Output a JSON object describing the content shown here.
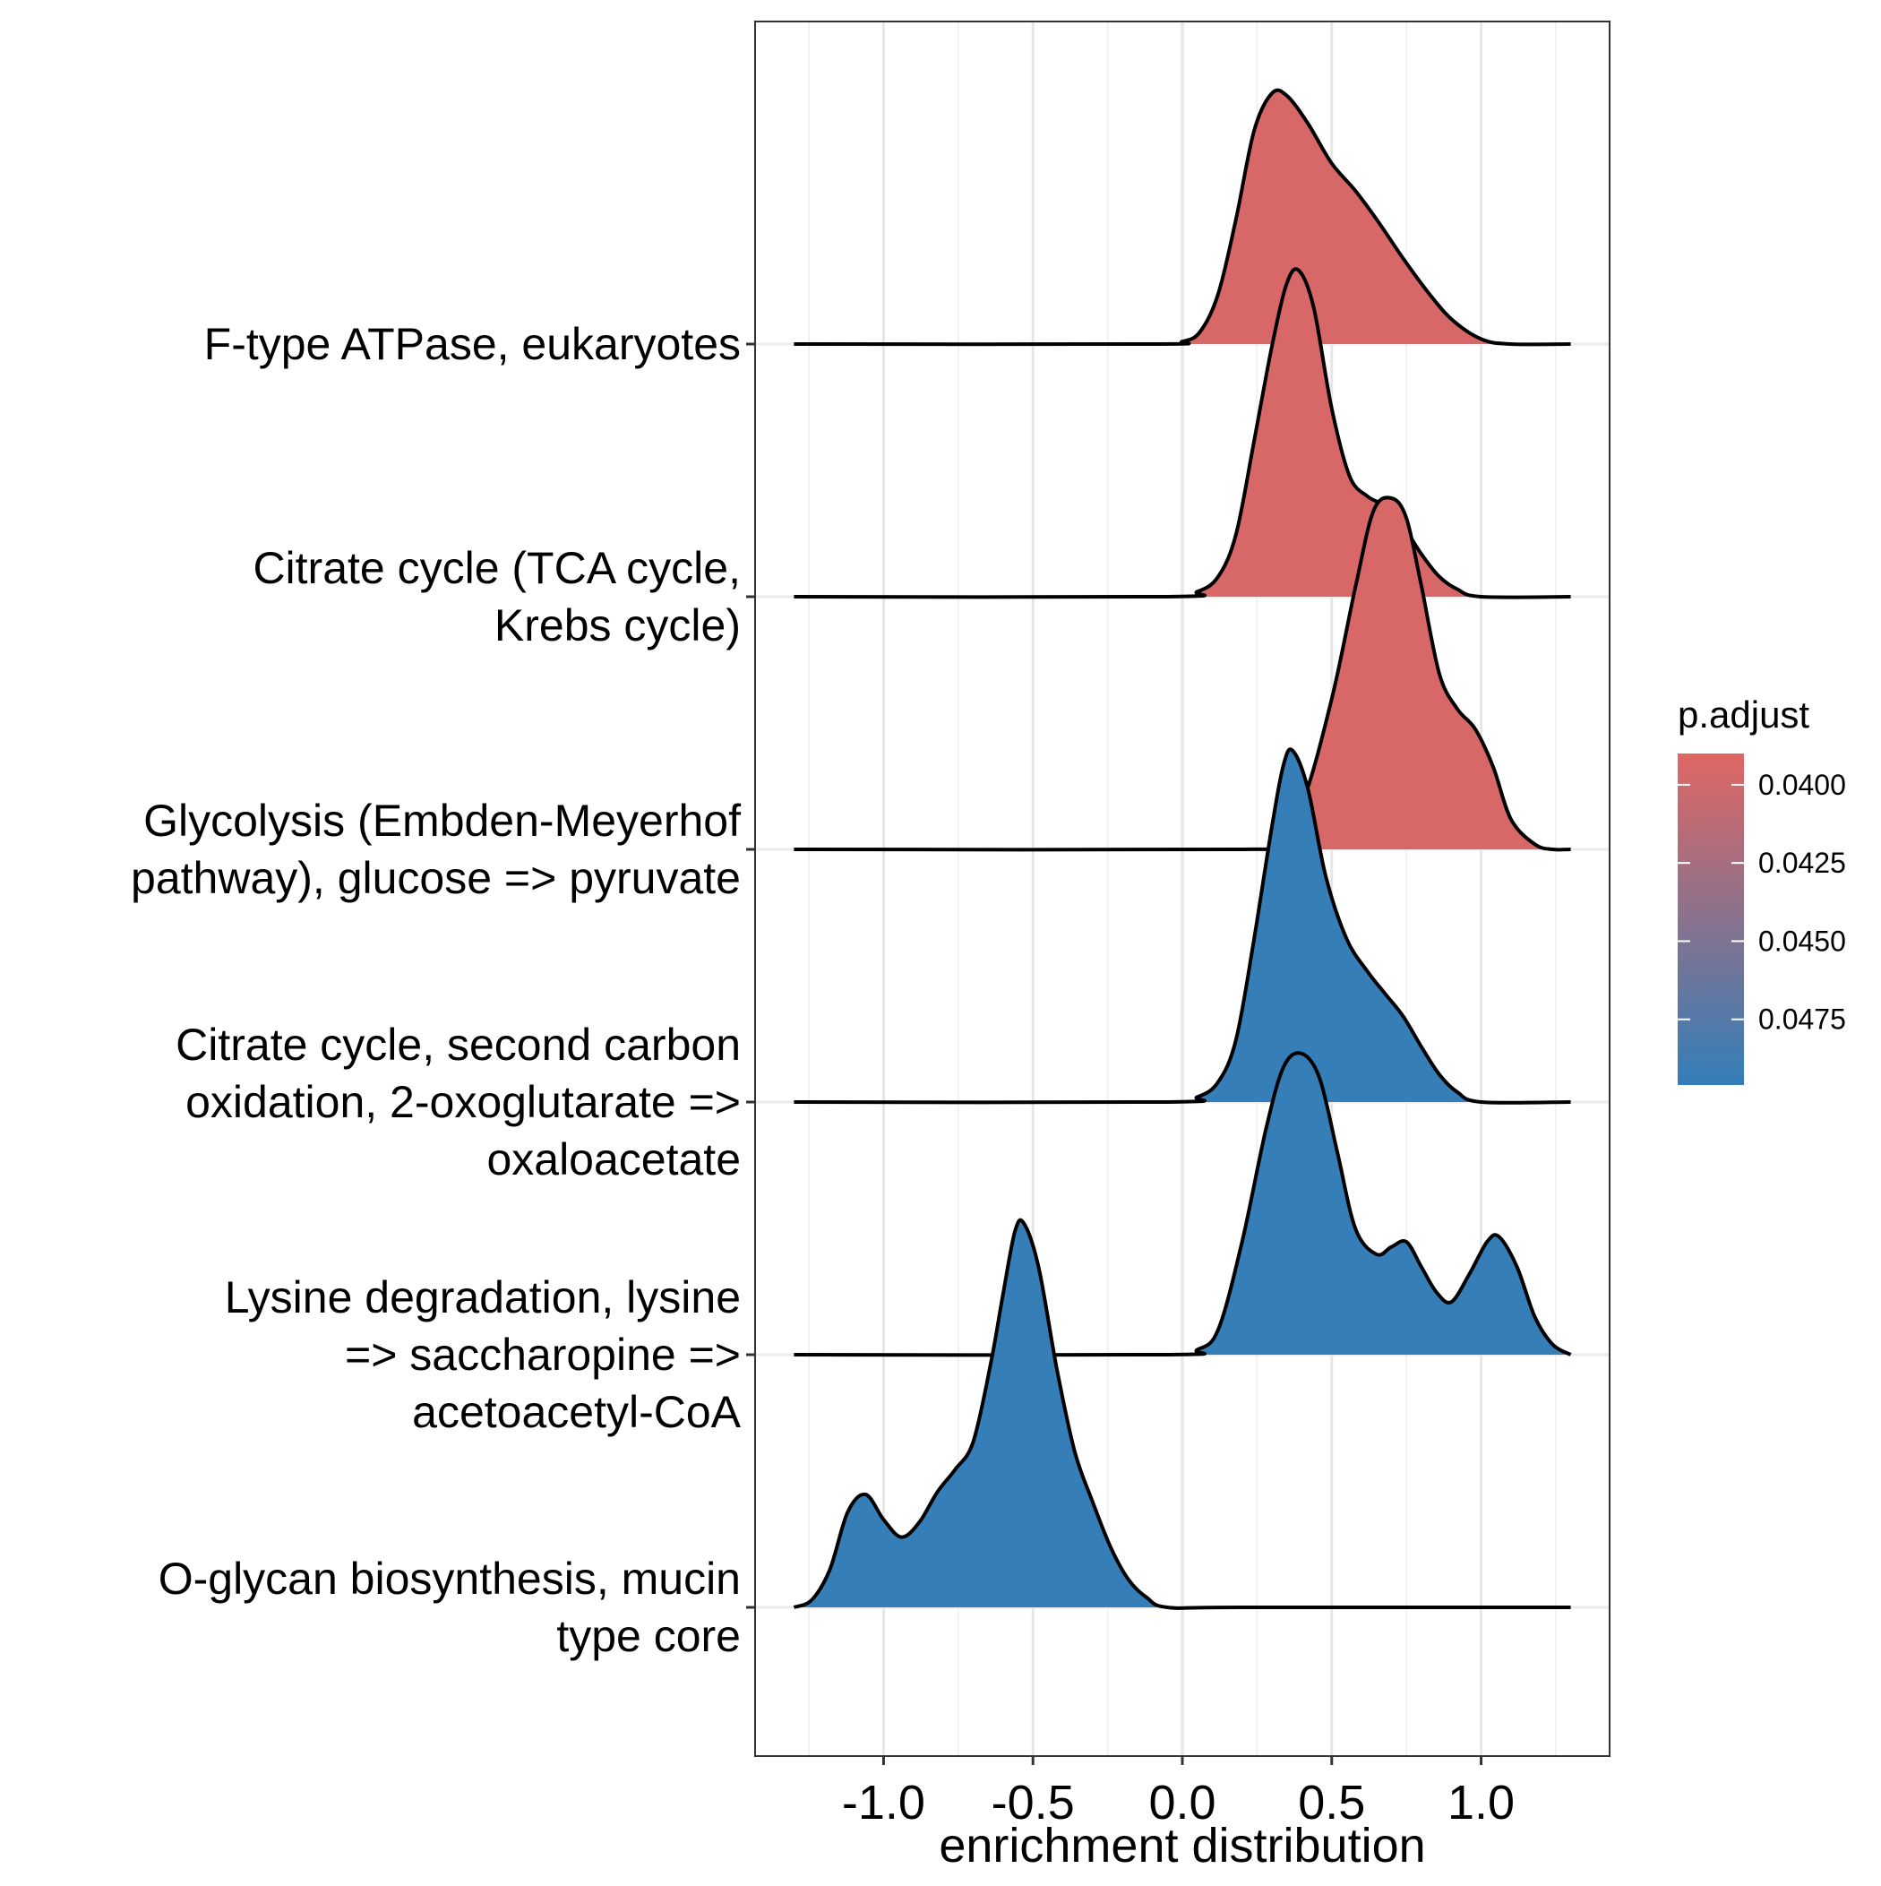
{
  "chart_data": {
    "type": "ridgeline",
    "title": "",
    "xlabel": "enrichment distribution",
    "ylabel": "",
    "xlim": [
      -1.43,
      1.43
    ],
    "x_ticks": [
      -1.0,
      -0.5,
      0.0,
      0.5,
      1.0
    ],
    "x_tick_labels": [
      "-1.0",
      "-0.5",
      "0.0",
      "0.5",
      "1.0"
    ],
    "grid": true,
    "ridge_scale": 1.0,
    "categories": [
      "F-type ATPase, eukaryotes",
      "Citrate cycle (TCA cycle, Krebs cycle)",
      "Glycolysis (Embden-Meyerhof pathway), glucose => pyruvate",
      "Citrate cycle, second carbon oxidation, 2-oxoglutarate => oxaloacetate",
      "Lysine degradation, lysine => saccharopine => acetoacetyl-CoA",
      "O-glycan biosynthesis, mucin type core"
    ],
    "category_label_lines": [
      [
        "F-type ATPase, eukaryotes"
      ],
      [
        "Citrate cycle (TCA cycle,",
        "Krebs cycle)"
      ],
      [
        "Glycolysis (Embden-Meyerhof",
        "pathway), glucose => pyruvate"
      ],
      [
        "Citrate cycle, second carbon",
        "oxidation, 2-oxoglutarate =>",
        "oxaloacetate"
      ],
      [
        "Lysine degradation, lysine",
        "=> saccharopine =>",
        "acetoacetyl-CoA"
      ],
      [
        "O-glycan biosynthesis, mucin",
        "type core"
      ]
    ],
    "series": [
      {
        "name": "F-type ATPase, eukaryotes",
        "p_adjust": 0.0395,
        "color": "#E06663",
        "x": [
          -1.3,
          -0.1,
          0.0,
          0.06,
          0.12,
          0.18,
          0.24,
          0.3,
          0.35,
          0.42,
          0.5,
          0.58,
          0.66,
          0.74,
          0.82,
          0.9,
          1.0,
          1.1,
          1.3
        ],
        "y": [
          0.0,
          0.0,
          0.01,
          0.05,
          0.2,
          0.5,
          0.85,
          1.0,
          0.99,
          0.88,
          0.72,
          0.61,
          0.48,
          0.34,
          0.21,
          0.1,
          0.02,
          0.0,
          0.0
        ]
      },
      {
        "name": "Citrate cycle (TCA cycle, Krebs cycle)",
        "p_adjust": 0.0395,
        "color": "#E06663",
        "x": [
          -1.3,
          -0.05,
          0.05,
          0.12,
          0.18,
          0.24,
          0.3,
          0.35,
          0.39,
          0.44,
          0.5,
          0.56,
          0.62,
          0.68,
          0.74,
          0.8,
          0.86,
          0.92,
          1.0,
          1.3
        ],
        "y": [
          0.0,
          0.0,
          0.02,
          0.08,
          0.25,
          0.62,
          1.0,
          1.25,
          1.3,
          1.15,
          0.75,
          0.48,
          0.4,
          0.36,
          0.28,
          0.17,
          0.08,
          0.03,
          0.0,
          0.0
        ]
      },
      {
        "name": "Glycolysis (Embden-Meyerhof pathway), glucose => pyruvate",
        "p_adjust": 0.0395,
        "color": "#E06663",
        "x": [
          -1.3,
          0.2,
          0.3,
          0.4,
          0.5,
          0.58,
          0.64,
          0.7,
          0.75,
          0.8,
          0.86,
          0.92,
          0.98,
          1.04,
          1.1,
          1.18,
          1.24,
          1.3
        ],
        "y": [
          0.0,
          0.0,
          0.02,
          0.18,
          0.6,
          1.05,
          1.35,
          1.4,
          1.32,
          1.05,
          0.7,
          0.56,
          0.48,
          0.33,
          0.12,
          0.02,
          0.0,
          0.0
        ]
      },
      {
        "name": "Citrate cycle, second carbon oxidation, 2-oxoglutarate => oxaloacetate",
        "p_adjust": 0.0495,
        "color": "#337EB9",
        "x": [
          -1.3,
          -0.05,
          0.05,
          0.12,
          0.18,
          0.24,
          0.3,
          0.34,
          0.37,
          0.42,
          0.48,
          0.55,
          0.62,
          0.68,
          0.74,
          0.8,
          0.86,
          0.92,
          1.0,
          1.3
        ],
        "y": [
          0.0,
          0.0,
          0.02,
          0.08,
          0.25,
          0.65,
          1.1,
          1.35,
          1.4,
          1.25,
          0.9,
          0.65,
          0.52,
          0.43,
          0.34,
          0.22,
          0.11,
          0.04,
          0.0,
          0.0
        ]
      },
      {
        "name": "Lysine degradation, lysine => saccharopine => acetoacetyl-CoA",
        "p_adjust": 0.0495,
        "color": "#337EB9",
        "x": [
          -1.3,
          -0.05,
          0.05,
          0.12,
          0.2,
          0.28,
          0.34,
          0.4,
          0.46,
          0.52,
          0.58,
          0.65,
          0.7,
          0.75,
          0.8,
          0.85,
          0.9,
          0.96,
          1.02,
          1.06,
          1.12,
          1.18,
          1.24,
          1.3
        ],
        "y": [
          0.0,
          0.0,
          0.02,
          0.1,
          0.45,
          0.9,
          1.15,
          1.2,
          1.1,
          0.8,
          0.5,
          0.4,
          0.43,
          0.45,
          0.35,
          0.25,
          0.21,
          0.32,
          0.45,
          0.47,
          0.35,
          0.15,
          0.04,
          0.0
        ]
      },
      {
        "name": "O-glycan biosynthesis, mucin type core",
        "p_adjust": 0.0495,
        "color": "#337EB9",
        "x": [
          -1.3,
          -1.24,
          -1.18,
          -1.12,
          -1.06,
          -1.0,
          -0.94,
          -0.88,
          -0.82,
          -0.76,
          -0.7,
          -0.64,
          -0.6,
          -0.56,
          -0.53,
          -0.48,
          -0.42,
          -0.36,
          -0.3,
          -0.24,
          -0.18,
          -0.12,
          -0.05,
          0.2,
          1.3
        ],
        "y": [
          0.0,
          0.03,
          0.15,
          0.38,
          0.45,
          0.35,
          0.28,
          0.34,
          0.46,
          0.55,
          0.66,
          0.98,
          1.25,
          1.5,
          1.53,
          1.35,
          0.95,
          0.62,
          0.42,
          0.24,
          0.11,
          0.04,
          0.0,
          0.0,
          0.0
        ]
      }
    ],
    "legend": {
      "title": "p.adjust",
      "position": "right",
      "color_low": "#E06663",
      "color_high": "#337EB9",
      "value_min": 0.039,
      "value_max": 0.0496,
      "ticks": [
        0.04,
        0.0425,
        0.045,
        0.0475
      ],
      "tick_labels": [
        "0.0400",
        "0.0425",
        "0.0450",
        "0.0475"
      ]
    }
  }
}
